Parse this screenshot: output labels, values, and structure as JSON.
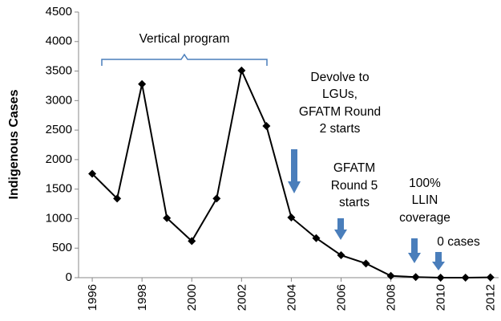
{
  "chart_data": {
    "type": "line",
    "y_label": "Indigenous Cases",
    "x": [
      1996,
      1997,
      1998,
      1999,
      2000,
      2001,
      2002,
      2003,
      2004,
      2005,
      2006,
      2007,
      2008,
      2009,
      2010,
      2011,
      2012
    ],
    "series": [
      {
        "name": "Indigenous Cases",
        "color": "#000000",
        "values": [
          1760,
          1340,
          3280,
          1010,
          620,
          1340,
          3510,
          2570,
          1020,
          670,
          380,
          240,
          30,
          10,
          0,
          0,
          5
        ]
      }
    ],
    "xlim": [
      1995.45,
      2012.33
    ],
    "xticks": [
      1996,
      1998,
      2000,
      2002,
      2004,
      2006,
      2008,
      2010,
      2012
    ],
    "ylim": [
      0,
      4500
    ],
    "yticks": [
      0,
      500,
      1000,
      1500,
      2000,
      2500,
      3000,
      3500,
      4000,
      4500
    ],
    "grid": false,
    "annotations": {
      "vertical_program": "Vertical program",
      "devolve": [
        "Devolve to",
        "LGUs,",
        "GFATM Round",
        "2 starts"
      ],
      "round5": [
        "GFATM",
        "Round 5",
        "starts"
      ],
      "llin": [
        "100%",
        "LLIN",
        "coverage"
      ],
      "zero": "0 cases"
    }
  }
}
